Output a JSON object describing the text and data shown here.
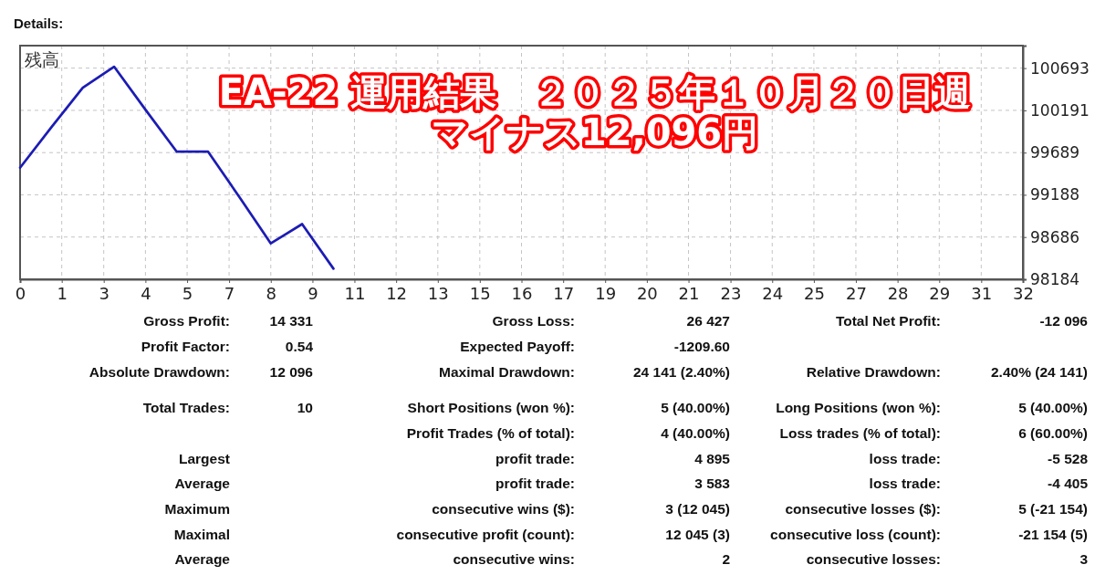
{
  "chart_data": [
    {
      "type": "line",
      "title": "EA-22 運用結果　２０２５年１０月２０日週",
      "subtitle": "マイナス12,096円",
      "ylabel": "残高",
      "annotations": [
        "Details:"
      ],
      "x": [
        0,
        1,
        2,
        3,
        4,
        5,
        6,
        7,
        8,
        9,
        10
      ],
      "series": [
        {
          "color": "#1c1cb4",
          "values": [
            99510,
            99990,
            100460,
            100710,
            100200,
            99700,
            99700,
            99160,
            98610,
            98840,
            98310
          ]
        }
      ],
      "xlim": [
        0,
        32
      ],
      "xticks": [
        0,
        {
          "value": 1.33,
          "label": "1"
        },
        {
          "value": 2.67,
          "label": "3"
        },
        4,
        {
          "value": 5.33,
          "label": "5"
        },
        {
          "value": 6.67,
          "label": "7"
        },
        8,
        {
          "value": 9.33,
          "label": "9"
        },
        {
          "value": 10.67,
          "label": "11"
        },
        12,
        {
          "value": 13.33,
          "label": "13"
        },
        {
          "value": 14.67,
          "label": "15"
        },
        16,
        {
          "value": 17.33,
          "label": "17"
        },
        {
          "value": 18.67,
          "label": "19"
        },
        20,
        {
          "value": 21.33,
          "label": "21"
        },
        {
          "value": 22.67,
          "label": "23"
        },
        24,
        {
          "value": 25.33,
          "label": "25"
        },
        {
          "value": 26.67,
          "label": "27"
        },
        28,
        {
          "value": 29.33,
          "label": "29"
        },
        {
          "value": 30.67,
          "label": "31"
        },
        32
      ],
      "ylim": [
        98184,
        100960
      ],
      "yticks": [
        98184,
        98686,
        99188,
        99689,
        100191,
        100693
      ],
      "grid": true,
      "line_style": "solid"
    },
    {
      "type": "other",
      "annotations": [
        "Gross Profit:",
        "14 331",
        "Gross Loss:",
        "26 427",
        "Total Net Profit:",
        "-12 096",
        "Profit Factor:",
        "0.54",
        "Expected Payoff:",
        "-1209.60",
        "Absolute Drawdown:",
        "12 096",
        "Maximal Drawdown:",
        "24 141 (2.40%)",
        "Relative Drawdown:",
        "2.40% (24 141)",
        "Total Trades:",
        "10",
        "Short Positions (won %):",
        "5 (40.00%)",
        "Long Positions (won %):",
        "5 (40.00%)",
        "Profit Trades (% of total):",
        "4 (40.00%)",
        "Loss trades (% of total):",
        "6 (60.00%)",
        "Largest",
        "profit trade:",
        "4 895",
        "loss trade:",
        "-5 528",
        "Average",
        "profit trade:",
        "3 583",
        "loss trade:",
        "-4 405",
        "Maximum",
        "consecutive wins ($):",
        "3 (12 045)",
        "consecutive losses ($):",
        "5 (-21 154)",
        "Maximal",
        "consecutive profit (count):",
        "12 045 (3)",
        "consecutive loss (count):",
        "-21 154 (5)",
        "Average",
        "consecutive wins:",
        "2",
        "consecutive losses:",
        "3"
      ]
    }
  ]
}
